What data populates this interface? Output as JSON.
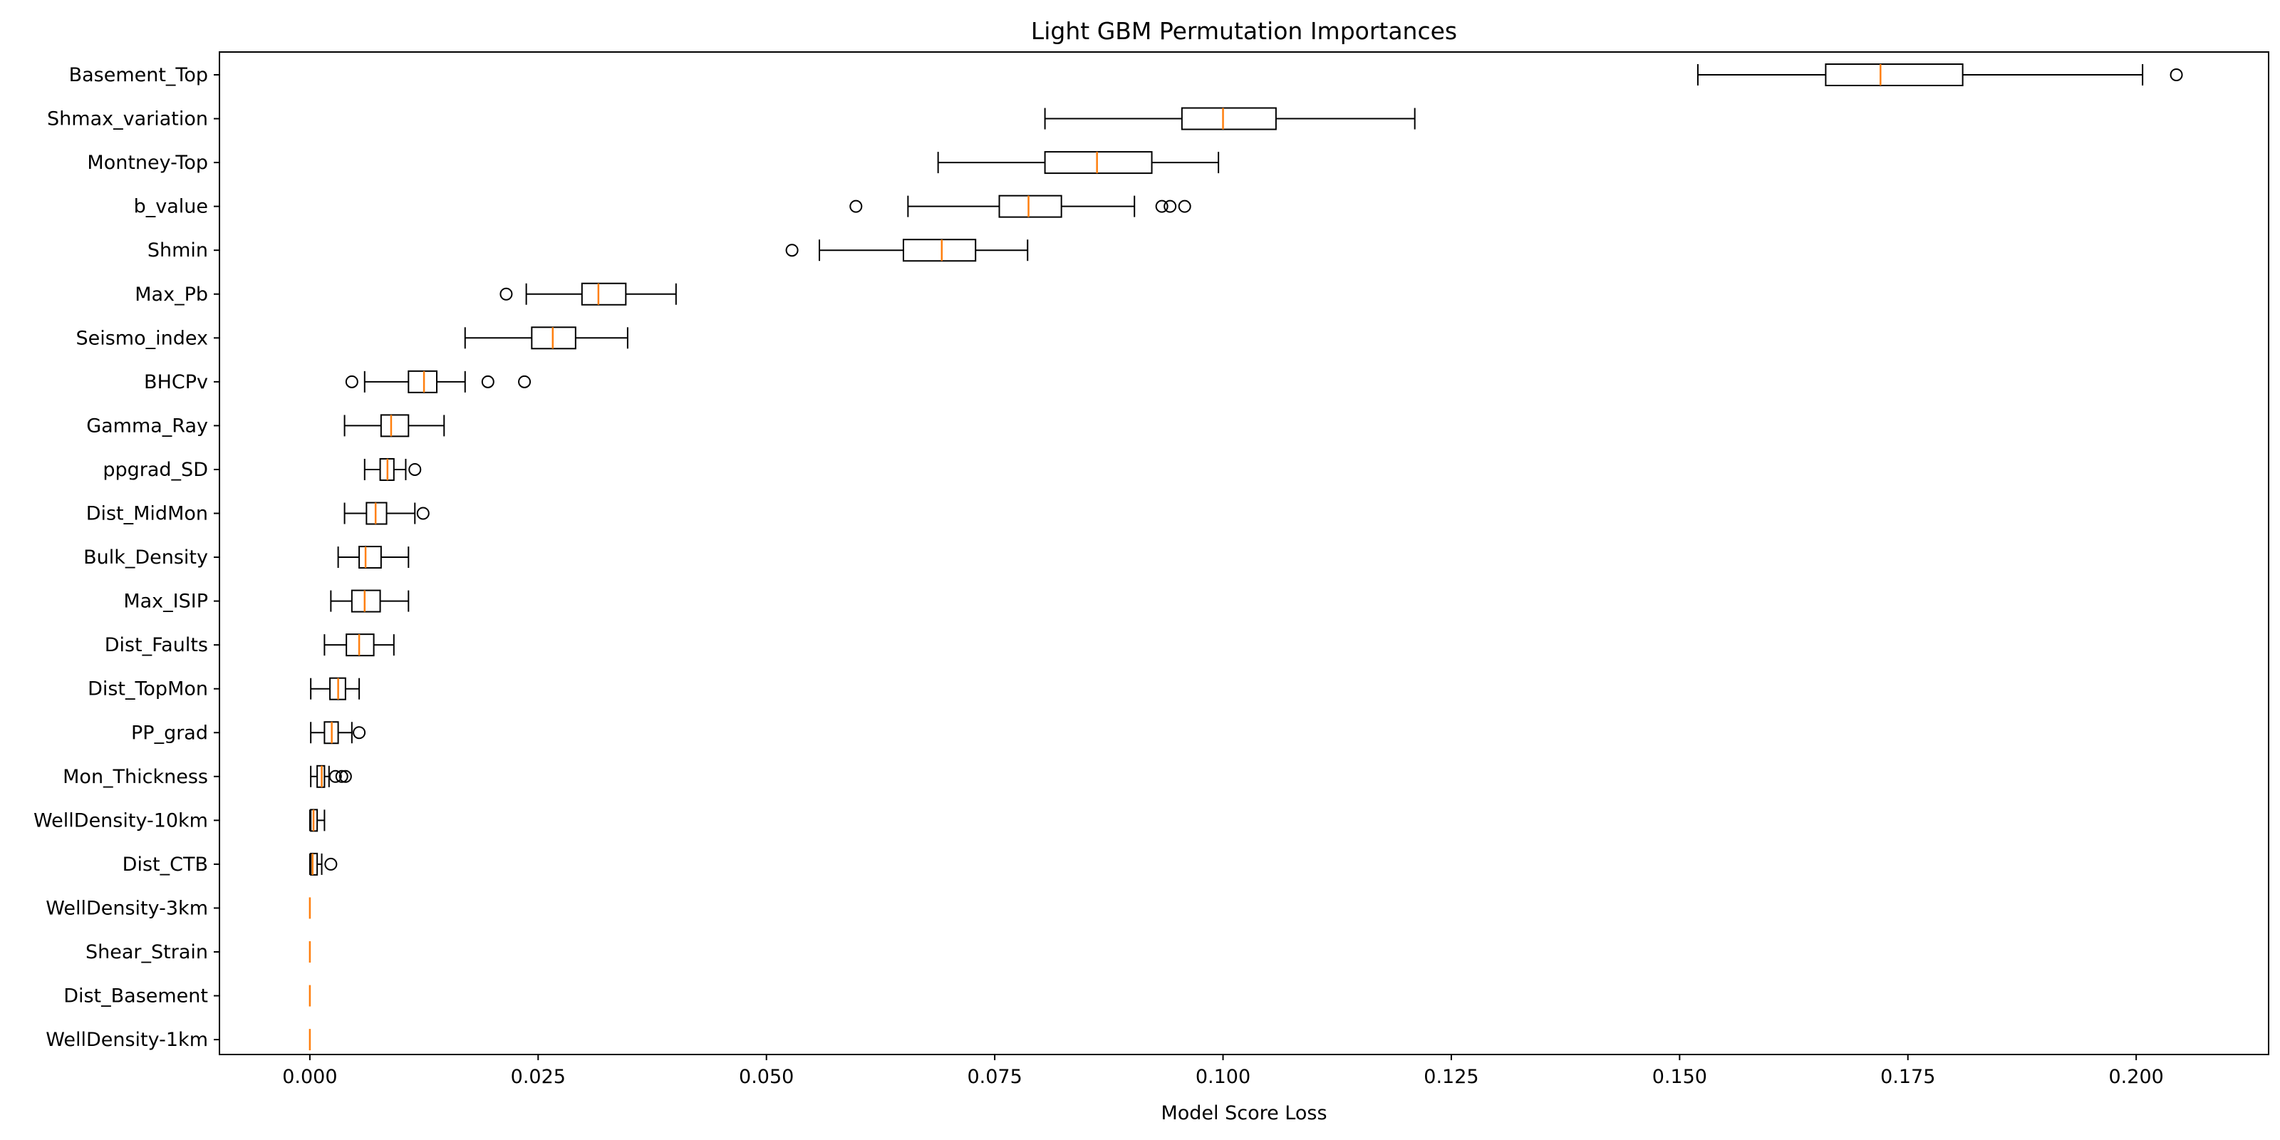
{
  "chart_data": {
    "type": "boxplot",
    "orientation": "horizontal",
    "title": "Light GBM Permutation Importances",
    "xlabel": "Model Score Loss",
    "ylabel": "",
    "xlim": [
      -0.0099,
      0.2145
    ],
    "x_ticks": [
      0.0,
      0.025,
      0.05,
      0.075,
      0.1,
      0.125,
      0.15,
      0.175,
      0.2
    ],
    "x_tick_labels": [
      "0.000",
      "0.025",
      "0.050",
      "0.075",
      "0.100",
      "0.125",
      "0.150",
      "0.175",
      "0.200"
    ],
    "grid": false,
    "legend": "none",
    "colors": {
      "box": "#000000",
      "median": "#ff7f0e"
    },
    "features": [
      {
        "name": "Basement_Top",
        "whisker_low": 0.152,
        "q1": 0.166,
        "median": 0.172,
        "q3": 0.181,
        "whisker_high": 0.2007,
        "outliers": [
          0.2044
        ]
      },
      {
        "name": "Shmax_variation",
        "whisker_low": 0.0805,
        "q1": 0.0955,
        "median": 0.1,
        "q3": 0.1058,
        "whisker_high": 0.121,
        "outliers": []
      },
      {
        "name": "Montney-Top",
        "whisker_low": 0.0688,
        "q1": 0.0805,
        "median": 0.0862,
        "q3": 0.0922,
        "whisker_high": 0.0995,
        "outliers": []
      },
      {
        "name": "b_value",
        "whisker_low": 0.0655,
        "q1": 0.0755,
        "median": 0.0787,
        "q3": 0.0823,
        "whisker_high": 0.0903,
        "outliers": [
          0.0598,
          0.0933,
          0.0942,
          0.0958
        ]
      },
      {
        "name": "Shmin",
        "whisker_low": 0.0558,
        "q1": 0.065,
        "median": 0.0692,
        "q3": 0.0729,
        "whisker_high": 0.0786,
        "outliers": [
          0.0528
        ]
      },
      {
        "name": "Max_Pb",
        "whisker_low": 0.0237,
        "q1": 0.0298,
        "median": 0.0316,
        "q3": 0.0346,
        "whisker_high": 0.0401,
        "outliers": [
          0.0215
        ]
      },
      {
        "name": "Seismo_index",
        "whisker_low": 0.017,
        "q1": 0.0243,
        "median": 0.0266,
        "q3": 0.0291,
        "whisker_high": 0.0348,
        "outliers": []
      },
      {
        "name": "BHCPv",
        "whisker_low": 0.006,
        "q1": 0.0108,
        "median": 0.0125,
        "q3": 0.0139,
        "whisker_high": 0.017,
        "outliers": [
          0.0046,
          0.0195,
          0.0235
        ]
      },
      {
        "name": "Gamma_Ray",
        "whisker_low": 0.0038,
        "q1": 0.0078,
        "median": 0.0089,
        "q3": 0.0108,
        "whisker_high": 0.0147,
        "outliers": []
      },
      {
        "name": "ppgrad_SD",
        "whisker_low": 0.006,
        "q1": 0.0077,
        "median": 0.0085,
        "q3": 0.0092,
        "whisker_high": 0.0105,
        "outliers": [
          0.0115
        ]
      },
      {
        "name": "Dist_MidMon",
        "whisker_low": 0.0038,
        "q1": 0.0062,
        "median": 0.0072,
        "q3": 0.0084,
        "whisker_high": 0.0115,
        "outliers": [
          0.0124
        ]
      },
      {
        "name": "Bulk_Density",
        "whisker_low": 0.0031,
        "q1": 0.0054,
        "median": 0.0061,
        "q3": 0.0078,
        "whisker_high": 0.0108,
        "outliers": []
      },
      {
        "name": "Max_ISIP",
        "whisker_low": 0.0023,
        "q1": 0.0046,
        "median": 0.006,
        "q3": 0.0077,
        "whisker_high": 0.0108,
        "outliers": []
      },
      {
        "name": "Dist_Faults",
        "whisker_low": 0.0016,
        "q1": 0.004,
        "median": 0.0054,
        "q3": 0.007,
        "whisker_high": 0.0092,
        "outliers": []
      },
      {
        "name": "Dist_TopMon",
        "whisker_low": 0.0001,
        "q1": 0.0022,
        "median": 0.0031,
        "q3": 0.0039,
        "whisker_high": 0.0054,
        "outliers": []
      },
      {
        "name": "PP_grad",
        "whisker_low": 0.0001,
        "q1": 0.0016,
        "median": 0.0024,
        "q3": 0.0031,
        "whisker_high": 0.0046,
        "outliers": [
          0.0054
        ]
      },
      {
        "name": "Mon_Thickness",
        "whisker_low": 0.0001,
        "q1": 0.0008,
        "median": 0.0013,
        "q3": 0.0016,
        "whisker_high": 0.0021,
        "outliers": [
          0.0028,
          0.0035,
          0.0039
        ]
      },
      {
        "name": "WellDensity-10km",
        "whisker_low": 0.0,
        "q1": 0.0001,
        "median": 0.0004,
        "q3": 0.0008,
        "whisker_high": 0.0016,
        "outliers": []
      },
      {
        "name": "Dist_CTB",
        "whisker_low": 0.0,
        "q1": 0.0001,
        "median": 0.0003,
        "q3": 0.0008,
        "whisker_high": 0.0013,
        "outliers": [
          0.0023
        ]
      },
      {
        "name": "WellDensity-3km",
        "whisker_low": 0.0,
        "q1": 0.0,
        "median": 0.0,
        "q3": 0.0,
        "whisker_high": 0.0,
        "outliers": []
      },
      {
        "name": "Shear_Strain",
        "whisker_low": 0.0,
        "q1": 0.0,
        "median": 0.0,
        "q3": 0.0,
        "whisker_high": 0.0,
        "outliers": []
      },
      {
        "name": "Dist_Basement",
        "whisker_low": 0.0,
        "q1": 0.0,
        "median": 0.0,
        "q3": 0.0,
        "whisker_high": 0.0,
        "outliers": []
      },
      {
        "name": "WellDensity-1km",
        "whisker_low": 0.0,
        "q1": 0.0,
        "median": 0.0,
        "q3": 0.0,
        "whisker_high": 0.0,
        "outliers": []
      }
    ]
  }
}
